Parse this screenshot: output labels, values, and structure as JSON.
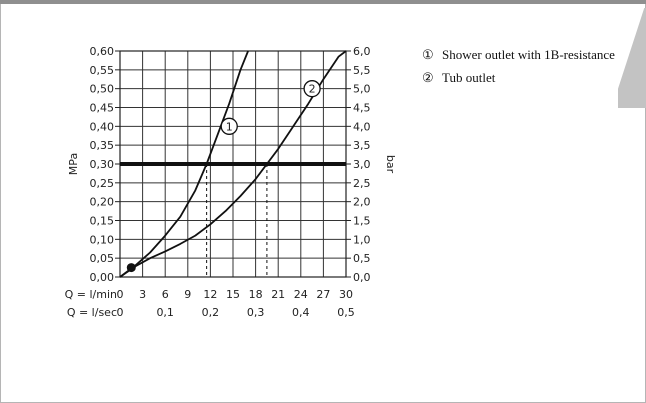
{
  "chart_data": {
    "type": "line",
    "left_axis": {
      "label": "MPa",
      "ticks": [
        "0,00",
        "0,05",
        "0,10",
        "0,15",
        "0,20",
        "0,25",
        "0,30",
        "0,35",
        "0,40",
        "0,45",
        "0,50",
        "0,55",
        "0,60"
      ],
      "range": [
        0,
        0.6
      ]
    },
    "right_axis": {
      "label": "bar",
      "ticks": [
        "0,0",
        "0,5",
        "1,0",
        "1,5",
        "2,0",
        "2,5",
        "3,0",
        "3,5",
        "4,0",
        "4,5",
        "5,0",
        "5,5",
        "6,0"
      ],
      "range": [
        0,
        6.0
      ]
    },
    "x_axis_primary": {
      "label": "Q = l/min",
      "ticks": [
        "0",
        "3",
        "6",
        "9",
        "12",
        "15",
        "18",
        "21",
        "24",
        "27",
        "30"
      ],
      "range": [
        0,
        30
      ]
    },
    "x_axis_secondary": {
      "label": "Q = l/sec",
      "ticks": [
        {
          "value": 0,
          "label": "0"
        },
        {
          "value": 6,
          "label": "0,1"
        },
        {
          "value": 12,
          "label": "0,2"
        },
        {
          "value": 18,
          "label": "0,3"
        },
        {
          "value": 24,
          "label": "0,4"
        },
        {
          "value": 30,
          "label": "0,5"
        }
      ]
    },
    "grid": true,
    "reference_line": {
      "y": 0.3,
      "style": "thick"
    },
    "series": [
      {
        "name": "1",
        "x": [
          0,
          1,
          2,
          4,
          6,
          8,
          10,
          11.5,
          13,
          14.5,
          16,
          17
        ],
        "y": [
          0,
          0.015,
          0.03,
          0.065,
          0.11,
          0.16,
          0.23,
          0.3,
          0.38,
          0.46,
          0.55,
          0.6
        ],
        "marker": {
          "x": 14.5,
          "y": 0.4,
          "label": "1"
        },
        "dashed_drop": {
          "x": 11.5,
          "y": 0.3
        }
      },
      {
        "name": "2",
        "x": [
          0,
          2,
          4,
          6,
          8,
          10,
          12,
          14,
          16,
          18,
          19.5,
          21,
          23,
          25,
          27,
          29,
          30
        ],
        "y": [
          0,
          0.028,
          0.05,
          0.068,
          0.088,
          0.11,
          0.14,
          0.175,
          0.215,
          0.26,
          0.3,
          0.34,
          0.4,
          0.46,
          0.525,
          0.585,
          0.6
        ],
        "marker": {
          "x": 25.5,
          "y": 0.5,
          "label": "2"
        },
        "dashed_drop": {
          "x": 19.5,
          "y": 0.3
        }
      }
    ],
    "start_dot": {
      "x": 1.5,
      "y": 0.025
    }
  },
  "legend": [
    {
      "num": "①",
      "text": "Shower outlet with 1B-resistance"
    },
    {
      "num": "②",
      "text": "Tub outlet"
    }
  ]
}
